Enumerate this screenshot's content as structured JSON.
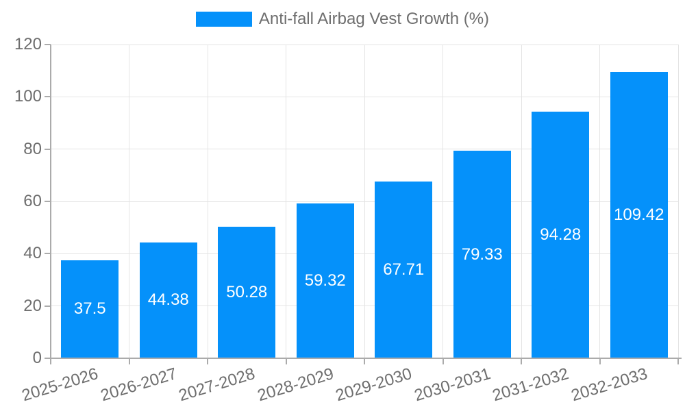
{
  "legend": {
    "label": "Anti-fall Airbag Vest Growth (%)",
    "position": "top"
  },
  "colors": {
    "bar": "#0591fa",
    "bar_label": "#ffffff",
    "axis_line": "#ababab",
    "grid_line": "#e4e4e4",
    "text": "#6e6e6e",
    "background": "#ffffff"
  },
  "chart_data": {
    "type": "bar",
    "title": "Anti-fall Airbag Vest Growth (%)",
    "categories": [
      "2025-2026",
      "2026-2027",
      "2027-2028",
      "2028-2029",
      "2029-2030",
      "2030-2031",
      "2031-2032",
      "2032-2033"
    ],
    "values": [
      37.5,
      44.38,
      50.28,
      59.32,
      67.71,
      79.33,
      94.28,
      109.42
    ],
    "value_labels": [
      "37.5",
      "44.38",
      "50.28",
      "59.32",
      "67.71",
      "79.33",
      "94.28",
      "109.42"
    ],
    "xlabel": "",
    "ylabel": "",
    "ylim": [
      0,
      120
    ],
    "yticks": [
      0,
      20,
      40,
      60,
      80,
      100,
      120
    ],
    "grid": true,
    "legend_position": "top",
    "value_labels_inside_bars": true
  }
}
